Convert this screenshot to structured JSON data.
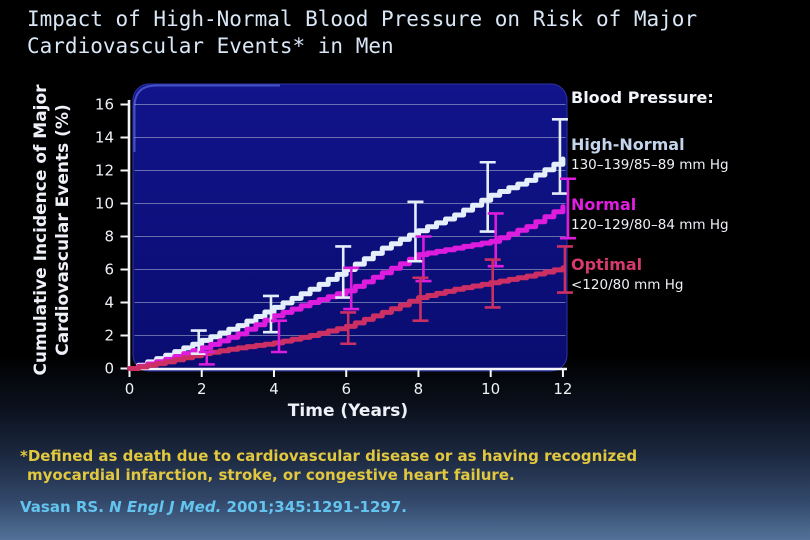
{
  "slide": {
    "title_line1": "Impact of High-Normal Blood Pressure on Risk of Major",
    "title_line2": "Cardiovascular Events* in Men",
    "background_top_color": "#000000",
    "background_bottom_color": "#537299",
    "title_color": "#d9e6f5"
  },
  "legend": {
    "title": "Blood Pressure:",
    "items": [
      {
        "label": "High-Normal",
        "value": "130–139/85–89 mm Hg",
        "color": "#c3d4ec"
      },
      {
        "label": "Normal",
        "value": "120–129/80–84 mm Hg",
        "color": "#e01ee0"
      },
      {
        "label": "Optimal",
        "value": "<120/80 mm Hg",
        "color": "#d53a6d"
      }
    ],
    "value_color": "#edf0f6"
  },
  "footnote": {
    "line1": "*Defined as death due to cardiovascular disease or as having recognized",
    "line2": "myocardial infarction, stroke, or congestive heart failure.",
    "color": "#e2c83e"
  },
  "citation": {
    "author": "Vasan RS. ",
    "journal": "N Engl J Med. ",
    "ref": "2001;345:1291-1297.",
    "color": "#63c5ef"
  },
  "chart_data": {
    "type": "line",
    "title": "",
    "xlabel": "Time (Years)",
    "ylabel": "Cumulative Incidence of Major Cardiovascular Events (%)",
    "ylabel_line1": "Cumulative Incidence of Major",
    "ylabel_line2": "Cardiovascular Events (%)",
    "xlim": [
      0,
      12
    ],
    "ylim": [
      0,
      16
    ],
    "x_ticks": [
      0,
      2,
      4,
      6,
      8,
      10,
      12
    ],
    "y_ticks": [
      0,
      2,
      4,
      6,
      8,
      10,
      12,
      14,
      16
    ],
    "grid": true,
    "legend_position": "right",
    "plot_bg": "#0a0d77",
    "plot_border": "#2e35a6",
    "grid_color": "#c3cbe0",
    "axis_color": "#f3f5fa",
    "x": [
      0,
      1,
      2,
      3,
      4,
      5,
      6,
      7,
      8,
      9,
      10,
      11,
      12
    ],
    "series": [
      {
        "name": "High-Normal",
        "color": "#e5eefb",
        "values": [
          0,
          0.8,
          1.7,
          2.6,
          3.7,
          4.8,
          6.0,
          7.3,
          8.35,
          9.3,
          10.5,
          11.4,
          12.7
        ],
        "error_bars": {
          "x": [
            2,
            4,
            6,
            8,
            10,
            12
          ],
          "low": [
            0.9,
            2.2,
            4.3,
            6.5,
            8.3,
            10.6
          ],
          "high": [
            2.3,
            4.4,
            7.4,
            10.1,
            12.5,
            15.1
          ]
        }
      },
      {
        "name": "Normal",
        "color": "#dd1cdd",
        "values": [
          0,
          0.55,
          1.25,
          2.1,
          3.2,
          4.0,
          4.7,
          5.8,
          6.9,
          7.3,
          7.7,
          8.6,
          9.8
        ],
        "error_bars": {
          "x": [
            2,
            4,
            6,
            8,
            10,
            12
          ],
          "low": [
            0.25,
            1.0,
            3.6,
            5.3,
            6.2,
            7.9
          ],
          "high": [
            1.0,
            2.9,
            6.1,
            8.0,
            9.4,
            11.5
          ]
        }
      },
      {
        "name": "Optimal",
        "color": "#cb2f63",
        "values": [
          0,
          0.4,
          0.9,
          1.25,
          1.55,
          2.0,
          2.55,
          3.4,
          4.3,
          4.8,
          5.2,
          5.6,
          6.1
        ],
        "error_bars": {
          "x": [
            6,
            8,
            10,
            12
          ],
          "low": [
            1.5,
            2.9,
            3.7,
            4.6
          ],
          "high": [
            3.4,
            5.5,
            6.6,
            7.4
          ]
        }
      }
    ]
  }
}
